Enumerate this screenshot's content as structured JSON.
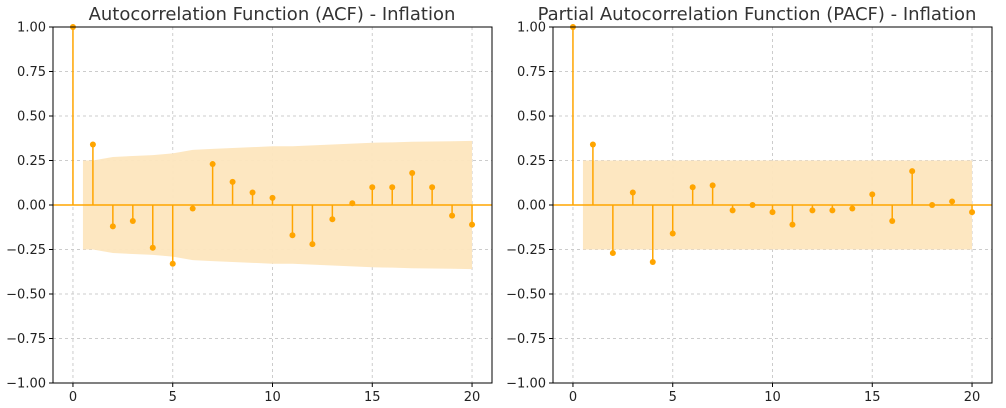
{
  "chart_data": [
    {
      "type": "stem",
      "title": "Autocorrelation Function (ACF) - Inflation",
      "x": [
        0,
        1,
        2,
        3,
        4,
        5,
        6,
        7,
        8,
        9,
        10,
        11,
        12,
        13,
        14,
        15,
        16,
        17,
        18,
        19,
        20
      ],
      "values": [
        1.0,
        0.34,
        -0.12,
        -0.09,
        -0.24,
        -0.33,
        -0.02,
        0.23,
        0.13,
        0.07,
        0.04,
        -0.17,
        -0.22,
        -0.08,
        0.01,
        0.1,
        0.1,
        0.18,
        0.1,
        -0.06,
        -0.11
      ],
      "confidence_upper": [
        0.25,
        0.25,
        0.27,
        0.275,
        0.28,
        0.29,
        0.31,
        0.315,
        0.32,
        0.325,
        0.33,
        0.33,
        0.335,
        0.34,
        0.345,
        0.35,
        0.352,
        0.355,
        0.357,
        0.358,
        0.36
      ],
      "xlim": [
        -1,
        21
      ],
      "ylim": [
        -1.0,
        1.0
      ],
      "xticks": [
        "0",
        "5",
        "10",
        "15",
        "20"
      ],
      "yticks": [
        "1.00",
        "0.75",
        "0.50",
        "0.25",
        "0.00",
        "−0.25",
        "−0.50",
        "−0.75",
        "−1.00"
      ],
      "grid": true,
      "colors": {
        "stem": "#ffa500",
        "band": "#fde6be",
        "zero_line": "#ffa500"
      }
    },
    {
      "type": "stem",
      "title": "Partial Autocorrelation Function (PACF) - Inflation",
      "x": [
        0,
        1,
        2,
        3,
        4,
        5,
        6,
        7,
        8,
        9,
        10,
        11,
        12,
        13,
        14,
        15,
        16,
        17,
        18,
        19,
        20
      ],
      "values": [
        1.0,
        0.34,
        -0.27,
        0.07,
        -0.32,
        -0.16,
        0.1,
        0.11,
        -0.03,
        0.0,
        -0.04,
        -0.11,
        -0.03,
        -0.03,
        -0.02,
        0.06,
        -0.09,
        0.19,
        0.0,
        0.02,
        -0.04
      ],
      "confidence_upper": [
        0.25,
        0.25,
        0.25,
        0.25,
        0.25,
        0.25,
        0.25,
        0.25,
        0.25,
        0.25,
        0.25,
        0.25,
        0.25,
        0.25,
        0.25,
        0.25,
        0.25,
        0.25,
        0.25,
        0.25,
        0.25
      ],
      "xlim": [
        -1,
        21
      ],
      "ylim": [
        -1.0,
        1.0
      ],
      "xticks": [
        "0",
        "5",
        "10",
        "15",
        "20"
      ],
      "yticks": [
        "1.00",
        "0.75",
        "0.50",
        "0.25",
        "0.00",
        "−0.25",
        "−0.50",
        "−0.75",
        "−1.00"
      ],
      "grid": true,
      "colors": {
        "stem": "#ffa500",
        "band": "#fde6be",
        "zero_line": "#ffa500"
      }
    }
  ]
}
